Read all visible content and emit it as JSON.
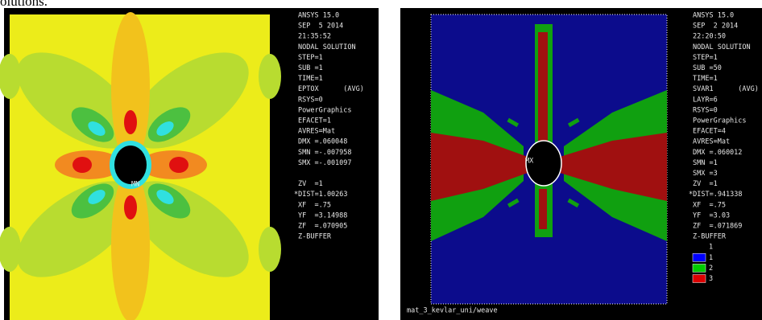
{
  "caption_fragment": "olutions.",
  "panels": [
    {
      "info_lines": [
        "ANSYS 15.0",
        "SEP  5 2014",
        "21:35:52",
        "NODAL SOLUTION",
        "STEP=1",
        "SUB =1",
        "TIME=1",
        "EPTOX      (AVG)",
        "RSYS=0",
        "PowerGraphics",
        "EFACET=1",
        "AVRES=Mat",
        "DMX =.060048",
        "SMN =-.007958",
        "SMX =-.001097"
      ],
      "view_lines": [
        "ZV  =1",
        "*DIST=1.00263",
        "XF  =.75",
        "YF  =3.14988",
        "ZF  =.070905",
        "Z-BUFFER"
      ],
      "plot_label": "MN"
    },
    {
      "info_lines": [
        "ANSYS 15.0",
        "SEP  2 2014",
        "22:20:50",
        "NODAL SOLUTION",
        "STEP=1",
        "SUB =50",
        "TIME=1",
        "SVAR1      (AVG)",
        "LAYR=6",
        "RSYS=0",
        "PowerGraphics",
        "EFACET=4",
        "AVRES=Mat",
        "DMX =.060012",
        "SMN =1",
        "SMX =3"
      ],
      "view_lines": [
        "ZV  =1",
        "*DIST=.941338",
        "XF  =.75",
        "YF  =3.03",
        "ZF  =.071869",
        "Z-BUFFER"
      ],
      "plot_label": "MX",
      "legend": {
        "top_label": "1",
        "entries": [
          {
            "label": "1",
            "color": "#0000ff"
          },
          {
            "label": "2",
            "color": "#00cc00"
          },
          {
            "label": "3",
            "color": "#dd0000"
          }
        ]
      },
      "footer": "mat_3_kevlar_uni/weave"
    }
  ]
}
